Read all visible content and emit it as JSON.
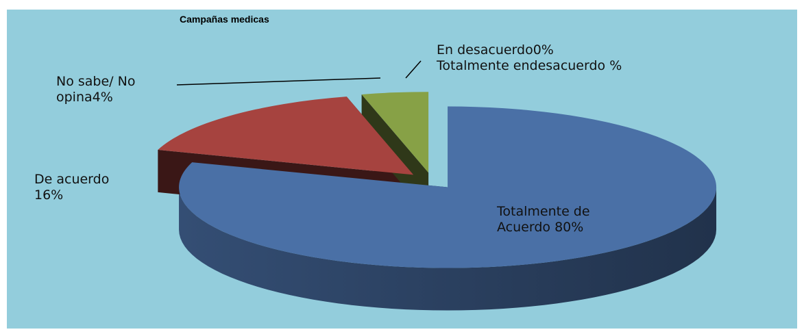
{
  "chart_data": {
    "type": "pie3d",
    "title": "Campañas medicas",
    "categories": [
      "Totalmente de Acuerdo",
      "De acuerdo",
      "No sabe/ No opina",
      "En desacuerdo",
      "Totalmente endesacuerdo"
    ],
    "values": [
      80,
      16,
      4,
      0,
      null
    ],
    "value_labels": [
      "80%",
      "16%",
      "4%",
      "0%",
      "%"
    ],
    "colors": [
      "#4a70a6",
      "#a6433f",
      "#87a146",
      "#7a6fa0",
      "#3f9bb5"
    ]
  }
}
